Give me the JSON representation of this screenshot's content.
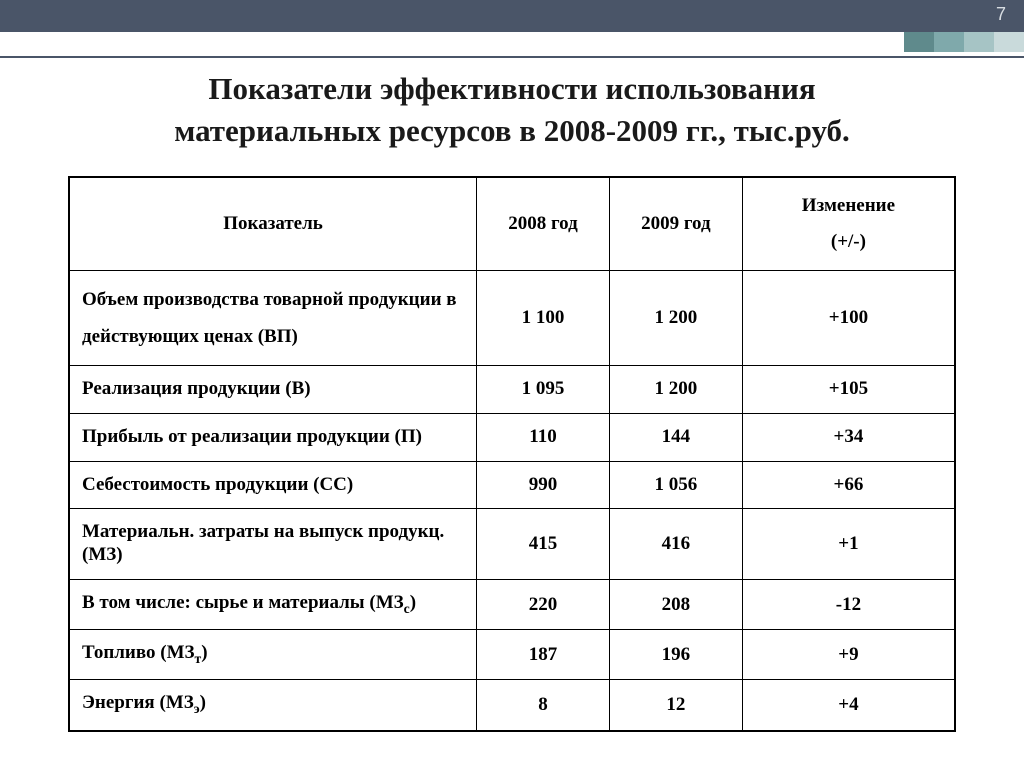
{
  "page_number": "7",
  "title": "Показатели эффективности использования\nматериальных ресурсов в 2008-2009 гг., тыс.руб.",
  "colors": {
    "top_bar": "#4a5568",
    "page_num_text": "#d8dde2",
    "accent": [
      "#5f8a8c",
      "#7fa9ab",
      "#a6c4c5",
      "#c9dadb"
    ],
    "border": "#000000",
    "text": "#000000",
    "background": "#ffffff"
  },
  "table": {
    "columns": [
      "Показатель",
      "2008 год",
      "2009 год",
      "Изменение\n(+/-)"
    ],
    "rows": [
      {
        "label": "Объем производства товарной продукции в действующих ценах (ВП)",
        "y1": "1 100",
        "y2": "1 200",
        "chg": "+100"
      },
      {
        "label": "Реализация продукции (В)",
        "y1": "1 095",
        "y2": "1 200",
        "chg": "+105"
      },
      {
        "label": "Прибыль от реализации продукции (П)",
        "y1": "110",
        "y2": "144",
        "chg": "+34"
      },
      {
        "label": "Себестоимость продукции (СС)",
        "y1": "990",
        "y2": "1 056",
        "chg": "+66"
      },
      {
        "label": "Материальн. затраты на выпуск продукц.(МЗ)",
        "y1": "415",
        "y2": "416",
        "chg": "+1"
      },
      {
        "label": "В том числе: сырье и материалы (МЗс)",
        "y1": "220",
        "y2": "208",
        "chg": "-12"
      },
      {
        "label": "Топливо (МЗт)",
        "y1": "187",
        "y2": "196",
        "chg": "+9"
      },
      {
        "label": "Энергия (МЗэ)",
        "y1": "8",
        "y2": "12",
        "chg": "+4"
      }
    ]
  }
}
